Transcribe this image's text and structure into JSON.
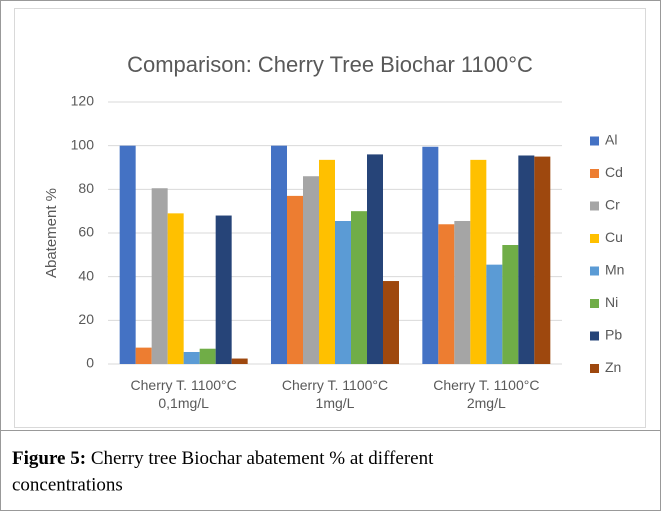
{
  "chart_data": {
    "type": "bar",
    "title": "Comparison: Cherry Tree Biochar 1100°C",
    "y_label": "Abatement %",
    "categories": [
      "Cherry T. 1100°C\n0,1mg/L",
      "Cherry T. 1100°C\n1mg/L",
      "Cherry T. 1100°C\n2mg/L"
    ],
    "series": [
      {
        "name": "Al",
        "color": "#4472c4",
        "values": [
          100,
          100,
          99.5
        ]
      },
      {
        "name": "Cd",
        "color": "#ed7d31",
        "values": [
          7.5,
          77,
          64
        ]
      },
      {
        "name": "Cr",
        "color": "#a5a5a5",
        "values": [
          80.5,
          86,
          65.5
        ]
      },
      {
        "name": "Cu",
        "color": "#ffc000",
        "values": [
          69,
          93.5,
          93.5
        ]
      },
      {
        "name": "Mn",
        "color": "#5b9bd5",
        "values": [
          5.5,
          65.5,
          45.5
        ]
      },
      {
        "name": "Ni",
        "color": "#70ad47",
        "values": [
          7,
          70,
          54.5
        ]
      },
      {
        "name": "Pb",
        "color": "#264478",
        "values": [
          68,
          96,
          95.5
        ]
      },
      {
        "name": "Zn",
        "color": "#9e480e",
        "values": [
          2.5,
          38,
          95
        ]
      }
    ],
    "ylim": [
      0,
      120
    ],
    "yticks": [
      0,
      20,
      40,
      60,
      80,
      100,
      120
    ],
    "grid": true,
    "legend": "right"
  },
  "caption": {
    "label": "Figure 5:",
    "text": "Cherry tree Biochar abatement % at different concentrations"
  }
}
